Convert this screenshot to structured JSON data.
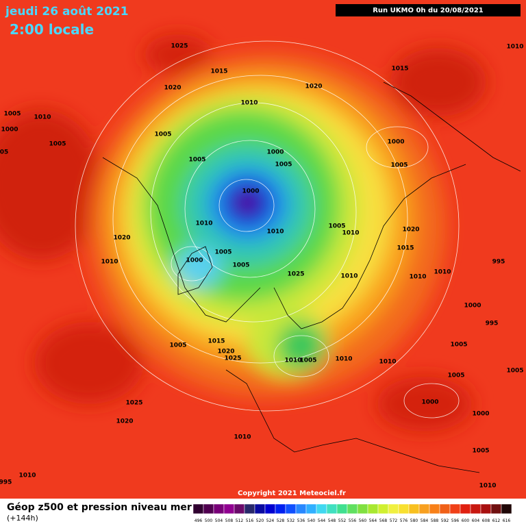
{
  "header": {
    "date": "jeudi 26 août 2021",
    "time": "2:00 locale",
    "run": "Run UKMO 0h du 20/08/2021"
  },
  "map": {
    "pressure_labels": [
      "1025",
      "1010",
      "1015",
      "1015",
      "1020",
      "1020",
      "1010",
      "1005",
      "1010",
      "1000",
      "1005",
      "1005",
      "1000",
      "05",
      "1005",
      "1000",
      "1005",
      "1005",
      "1000",
      "1010",
      "1005",
      "1010",
      "1020",
      "1010",
      "1020",
      "1015",
      "1005",
      "1000",
      "1010",
      "1005",
      "995",
      "1025",
      "1010",
      "1010",
      "1010",
      "1000",
      "995",
      "1015",
      "1005",
      "1005",
      "1020",
      "1025",
      "1010",
      "1005",
      "1010",
      "1010",
      "1005",
      "1005",
      "1025",
      "1000",
      "1020",
      "1000",
      "1010",
      "1005",
      "1010",
      "995",
      "1010"
    ],
    "copyright": "Copyright 2021 Meteociel.fr"
  },
  "footer": {
    "title": "Géop z500 et pression niveau mer",
    "subtitle": "(+144h)",
    "colorbar": [
      496,
      500,
      504,
      508,
      512,
      516,
      520,
      524,
      528,
      532,
      536,
      540,
      544,
      548,
      552,
      556,
      560,
      564,
      568,
      572,
      576,
      580,
      584,
      588,
      592,
      596,
      600,
      604,
      608,
      612,
      616
    ]
  }
}
